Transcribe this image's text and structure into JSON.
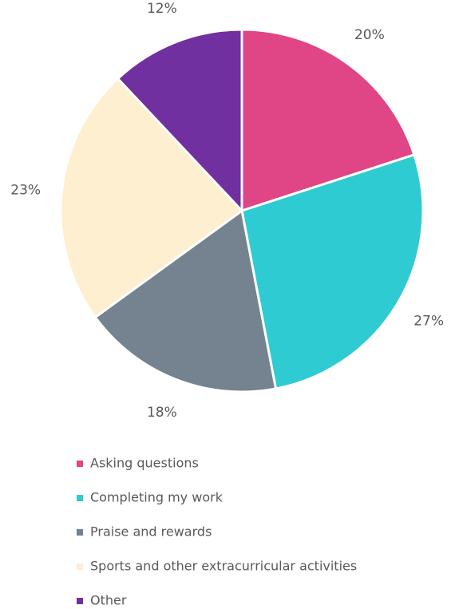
{
  "chart_data": {
    "type": "pie",
    "categories": [
      "Asking questions",
      "Completing my work",
      "Praise and rewards",
      "Sports and other extracurricular activities",
      "Other"
    ],
    "values": [
      20,
      27,
      18,
      23,
      12
    ],
    "value_labels": [
      "20%",
      "27%",
      "18%",
      "23%",
      "12%"
    ],
    "colors": [
      "#e04585",
      "#2ecbd3",
      "#74838f",
      "#fdefcf",
      "#7030a0"
    ],
    "legend": "bottom"
  }
}
